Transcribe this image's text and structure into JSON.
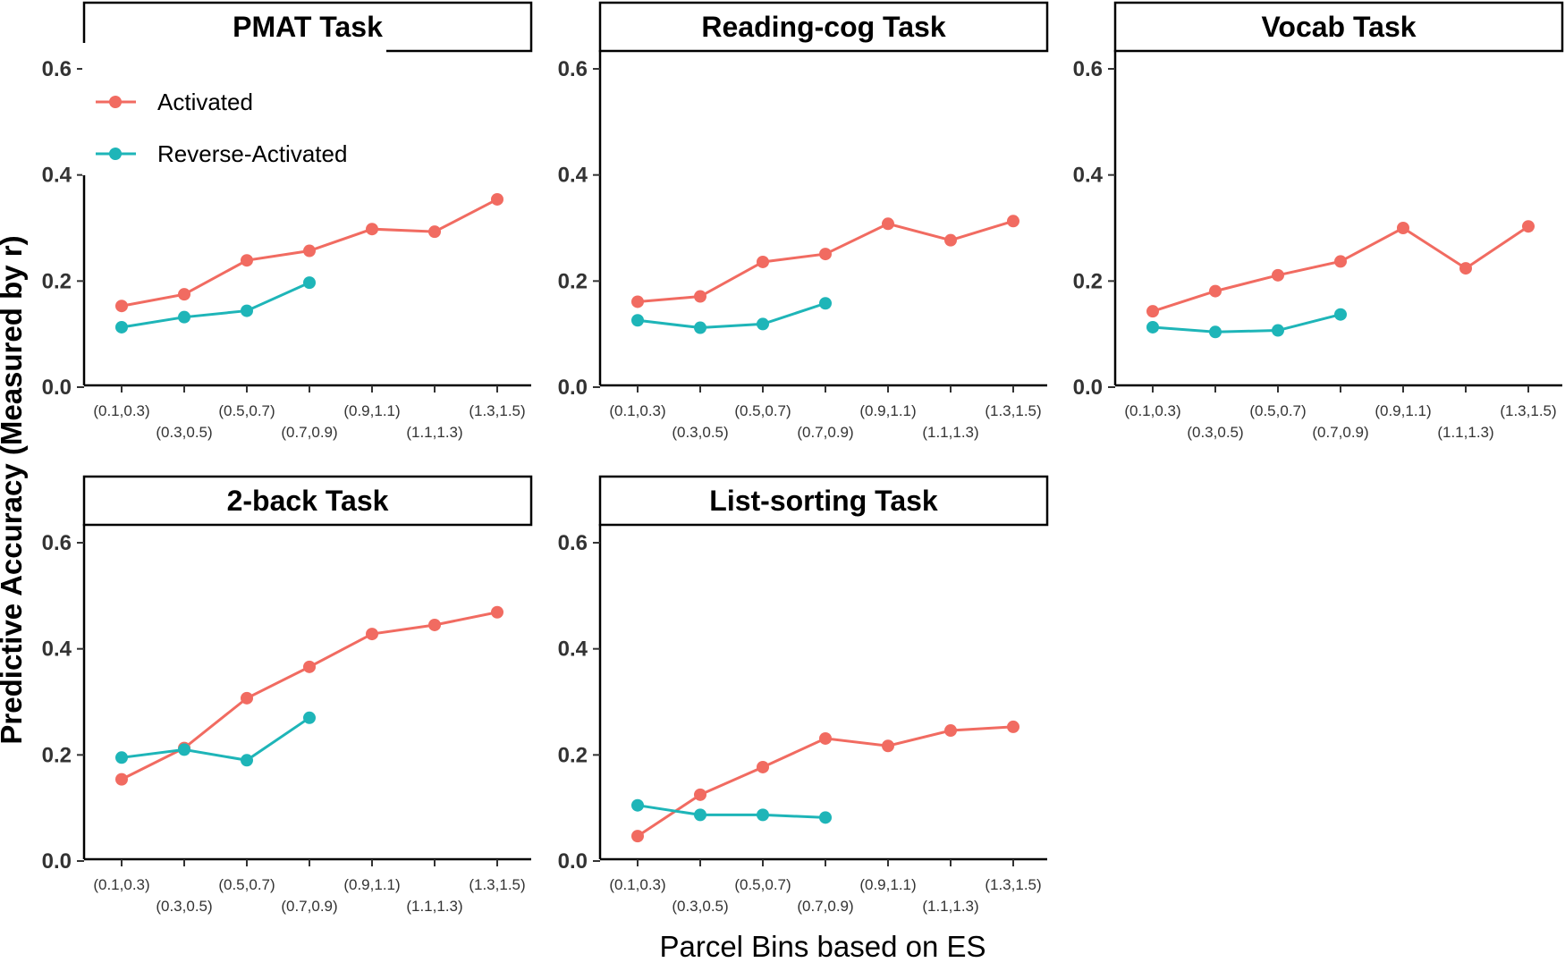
{
  "colors": {
    "activated": "#F16B61",
    "reverse_activated": "#1EB5B8"
  },
  "chart_data": {
    "type": "line",
    "xlabel": "Parcel Bins based on ES",
    "ylabel": "Predictive Accuracy (Measured by r)",
    "ylim": [
      0.0,
      0.6
    ],
    "yticks": [
      "0.0",
      "0.2",
      "0.4",
      "0.6"
    ],
    "categories": [
      "(0.1,0.3)",
      "(0.3,0.5)",
      "(0.5,0.7)",
      "(0.7,0.9)",
      "(0.9,1.1)",
      "(1.1,1.3)",
      "(1.3,1.5)"
    ],
    "grid": false,
    "legend": {
      "placement": "top-left inside first panel",
      "entries": [
        "Activated",
        "Reverse-Activated"
      ]
    },
    "panels": [
      {
        "title": "PMAT Task",
        "series": [
          {
            "name": "Activated",
            "values": [
              0.153,
              0.175,
              0.239,
              0.257,
              0.298,
              0.293,
              0.354
            ]
          },
          {
            "name": "Reverse-Activated",
            "values": [
              0.113,
              0.132,
              0.144,
              0.197
            ]
          }
        ]
      },
      {
        "title": "Reading-cog Task",
        "series": [
          {
            "name": "Activated",
            "values": [
              0.161,
              0.171,
              0.236,
              0.251,
              0.308,
              0.277,
              0.313
            ]
          },
          {
            "name": "Reverse-Activated",
            "values": [
              0.126,
              0.112,
              0.119,
              0.158
            ]
          }
        ]
      },
      {
        "title": "Vocab Task",
        "series": [
          {
            "name": "Activated",
            "values": [
              0.143,
              0.181,
              0.211,
              0.237,
              0.3,
              0.224,
              0.303
            ]
          },
          {
            "name": "Reverse-Activated",
            "values": [
              0.113,
              0.104,
              0.107,
              0.137
            ]
          }
        ]
      },
      {
        "title": "2-back Task",
        "series": [
          {
            "name": "Activated",
            "values": [
              0.154,
              0.213,
              0.307,
              0.366,
              0.428,
              0.445,
              0.469
            ]
          },
          {
            "name": "Reverse-Activated",
            "values": [
              0.195,
              0.21,
              0.19,
              0.27
            ]
          }
        ]
      },
      {
        "title": "List-sorting Task",
        "series": [
          {
            "name": "Activated",
            "values": [
              0.047,
              0.125,
              0.177,
              0.231,
              0.217,
              0.246,
              0.253
            ]
          },
          {
            "name": "Reverse-Activated",
            "values": [
              0.105,
              0.087,
              0.087,
              0.082
            ]
          }
        ]
      }
    ]
  }
}
